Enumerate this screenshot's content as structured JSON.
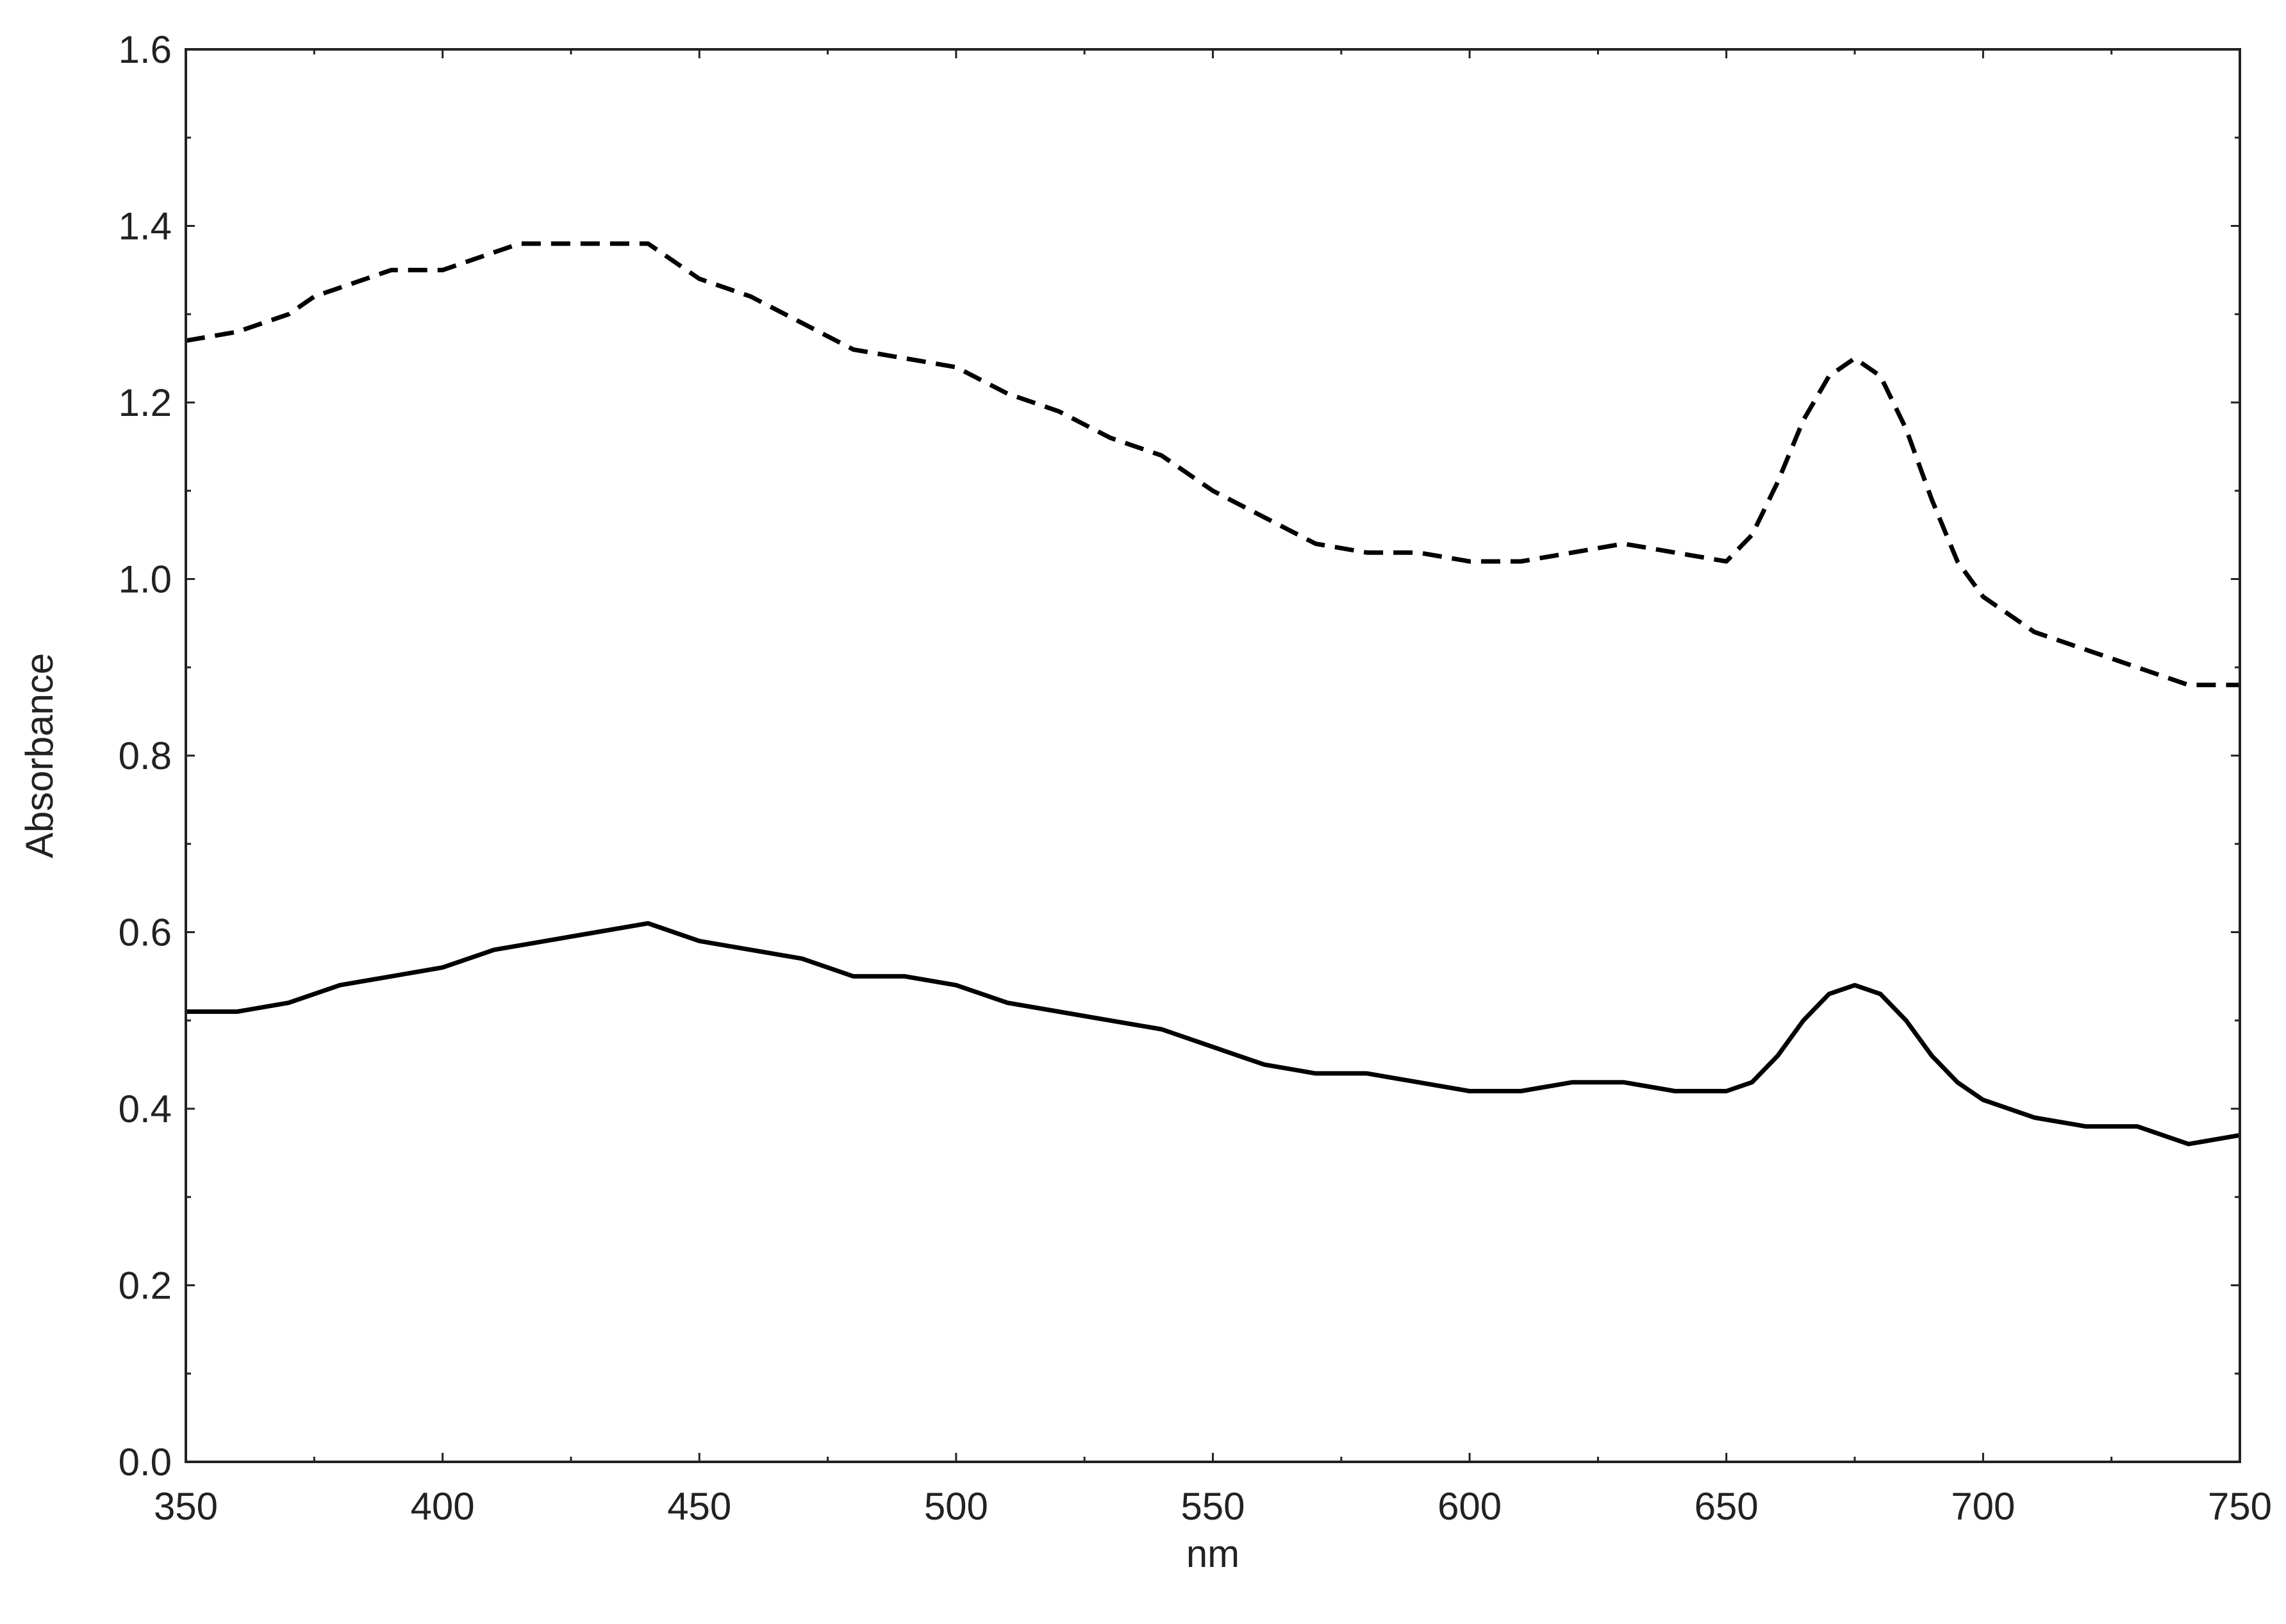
{
  "chart_data": {
    "type": "line",
    "title": "",
    "xlabel": "nm",
    "ylabel": "Absorbance",
    "xlim": [
      350,
      750
    ],
    "ylim": [
      0.0,
      1.6
    ],
    "x_ticks": [
      "350",
      "400",
      "450",
      "500",
      "550",
      "600",
      "650",
      "700",
      "750"
    ],
    "y_ticks": [
      "0.0",
      "0.2",
      "0.4",
      "0.6",
      "0.8",
      "1.0",
      "1.2",
      "1.4",
      "1.6"
    ],
    "grid": false,
    "legend": "none",
    "series": [
      {
        "style": "dashed",
        "color": "#000000",
        "x": [
          350,
          360,
          370,
          375,
          380,
          390,
          400,
          410,
          415,
          420,
          430,
          440,
          450,
          460,
          470,
          480,
          490,
          500,
          510,
          520,
          530,
          540,
          550,
          560,
          570,
          580,
          590,
          600,
          610,
          620,
          630,
          640,
          650,
          655,
          660,
          665,
          670,
          675,
          680,
          685,
          690,
          695,
          700,
          710,
          720,
          730,
          740,
          750
        ],
        "y": [
          1.27,
          1.28,
          1.3,
          1.32,
          1.33,
          1.35,
          1.35,
          1.37,
          1.38,
          1.38,
          1.38,
          1.38,
          1.34,
          1.32,
          1.29,
          1.26,
          1.25,
          1.24,
          1.21,
          1.19,
          1.16,
          1.14,
          1.1,
          1.07,
          1.04,
          1.03,
          1.03,
          1.02,
          1.02,
          1.03,
          1.04,
          1.03,
          1.02,
          1.05,
          1.11,
          1.18,
          1.23,
          1.25,
          1.23,
          1.17,
          1.09,
          1.02,
          0.98,
          0.94,
          0.92,
          0.9,
          0.88,
          0.88
        ]
      },
      {
        "style": "solid",
        "color": "#000000",
        "x": [
          350,
          360,
          370,
          380,
          390,
          400,
          410,
          420,
          430,
          440,
          450,
          460,
          470,
          480,
          490,
          500,
          510,
          520,
          530,
          540,
          550,
          560,
          570,
          580,
          590,
          600,
          610,
          620,
          630,
          640,
          650,
          655,
          660,
          665,
          670,
          675,
          680,
          685,
          690,
          695,
          700,
          710,
          720,
          730,
          740,
          750
        ],
        "y": [
          0.51,
          0.51,
          0.52,
          0.54,
          0.55,
          0.56,
          0.58,
          0.59,
          0.6,
          0.61,
          0.59,
          0.58,
          0.57,
          0.55,
          0.55,
          0.54,
          0.52,
          0.51,
          0.5,
          0.49,
          0.47,
          0.45,
          0.44,
          0.44,
          0.43,
          0.42,
          0.42,
          0.43,
          0.43,
          0.42,
          0.42,
          0.43,
          0.46,
          0.5,
          0.53,
          0.54,
          0.53,
          0.5,
          0.46,
          0.43,
          0.41,
          0.39,
          0.38,
          0.38,
          0.36,
          0.37
        ]
      }
    ]
  }
}
